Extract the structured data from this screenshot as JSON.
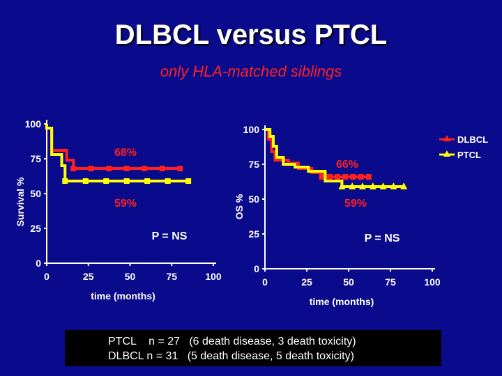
{
  "slide": {
    "title": "DLBCL versus PTCL",
    "subtitle": "only HLA-matched siblings"
  },
  "colors": {
    "background": "#0a0a8c",
    "dlbcl": "#ff2020",
    "ptcl": "#ffff00",
    "axis": "#ffffff",
    "subtitle": "#ff2020"
  },
  "chart_data": [
    {
      "type": "line",
      "panel": "left",
      "ylabel": "Survival %",
      "xlabel": "time (months)",
      "xlim": [
        0,
        100
      ],
      "ylim": [
        0,
        100
      ],
      "xticks": [
        "0",
        "25",
        "50",
        "75",
        "100"
      ],
      "yticks": [
        "0",
        "25",
        "50",
        "75",
        "100"
      ],
      "annotations": [
        {
          "text": "68%",
          "color": "#ff2020"
        },
        {
          "text": "59%",
          "color": "#ff2020"
        },
        {
          "text": "P = NS",
          "color": "#ffffff"
        }
      ],
      "series": [
        {
          "name": "DLBCL",
          "color": "#ff2020",
          "x": [
            0,
            0,
            3,
            3,
            12,
            12,
            16,
            16,
            80
          ],
          "y": [
            100,
            97,
            97,
            81,
            81,
            74,
            74,
            68,
            68
          ]
        },
        {
          "name": "PTCL",
          "color": "#ffff00",
          "x": [
            0,
            0,
            3,
            3,
            9,
            9,
            11,
            11,
            85
          ],
          "y": [
            100,
            97,
            97,
            78,
            78,
            70,
            70,
            59,
            59
          ]
        }
      ]
    },
    {
      "type": "line",
      "panel": "right",
      "ylabel": "OS %",
      "xlabel": "time (months)",
      "xlim": [
        0,
        100
      ],
      "ylim": [
        0,
        100
      ],
      "xticks": [
        "0",
        "25",
        "50",
        "75",
        "100"
      ],
      "yticks": [
        "0",
        "25",
        "50",
        "75",
        "100"
      ],
      "annotations": [
        {
          "text": "66%",
          "color": "#ff2020"
        },
        {
          "text": "59%",
          "color": "#ff2020"
        },
        {
          "text": "P = NS",
          "color": "#ffffff"
        }
      ],
      "series": [
        {
          "name": "DLBCL",
          "color": "#ff2020",
          "x": [
            0,
            2,
            2,
            4,
            4,
            6,
            6,
            14,
            14,
            20,
            20,
            28,
            28,
            34,
            34,
            62
          ],
          "y": [
            100,
            100,
            93,
            93,
            84,
            84,
            78,
            78,
            76,
            76,
            72,
            72,
            69,
            69,
            66,
            66
          ]
        },
        {
          "name": "PTCL",
          "color": "#ffff00",
          "x": [
            0,
            3,
            3,
            5,
            5,
            7,
            7,
            11,
            11,
            18,
            18,
            26,
            26,
            36,
            36,
            46,
            46,
            83
          ],
          "y": [
            100,
            100,
            95,
            95,
            88,
            88,
            80,
            80,
            75,
            75,
            73,
            73,
            70,
            70,
            63,
            63,
            59,
            59
          ]
        }
      ]
    }
  ],
  "legend": {
    "items": [
      {
        "label": "DLBCL",
        "color": "#ff2020"
      },
      {
        "label": "PTCL",
        "color": "#ffff00"
      }
    ]
  },
  "footer": {
    "lines": [
      "PTCL    n = 27   (6 death disease, 3 death toxicity)",
      "DLBCL n = 31   (5 death disease, 5 death toxicity)"
    ]
  }
}
